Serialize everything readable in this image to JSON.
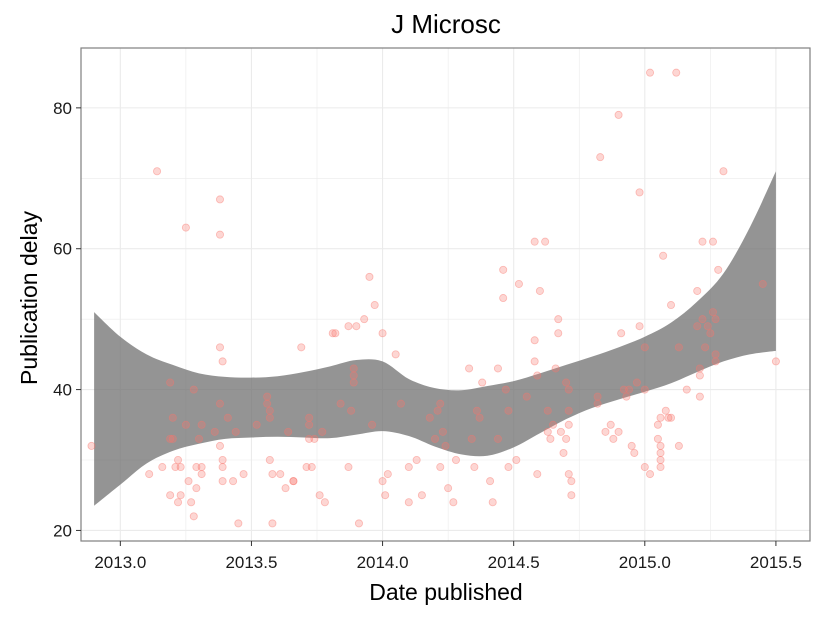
{
  "chart_data": {
    "type": "scatter",
    "title": "J Microsc",
    "xlabel": "Date published",
    "ylabel": "Publication delay",
    "xlim": [
      2012.85,
      2015.63
    ],
    "ylim": [
      18.5,
      88.5
    ],
    "x_ticks": [
      "2013.0",
      "2013.5",
      "2014.0",
      "2014.5",
      "2015.0",
      "2015.5"
    ],
    "y_ticks": [
      "20",
      "40",
      "60",
      "80"
    ],
    "grid": true,
    "legend": "none",
    "colors": {
      "points": "#f8766d",
      "ribbon": "#6b6b6b",
      "panel_border": "#7f7f7f",
      "grid": "#ebebeb"
    },
    "smooth_band": {
      "x": [
        2012.9,
        2013.0,
        2013.1,
        2013.2,
        2013.3,
        2013.4,
        2013.5,
        2013.6,
        2013.7,
        2013.8,
        2013.9,
        2014.0,
        2014.1,
        2014.2,
        2014.3,
        2014.4,
        2014.5,
        2014.6,
        2014.7,
        2014.8,
        2014.9,
        2015.0,
        2015.1,
        2015.2,
        2015.3,
        2015.4,
        2015.5
      ],
      "upper": [
        51.0,
        47.5,
        45.0,
        43.5,
        42.3,
        41.8,
        41.7,
        41.9,
        42.5,
        43.3,
        44.2,
        44.0,
        41.5,
        40.2,
        39.9,
        40.5,
        41.2,
        42.3,
        43.5,
        44.7,
        46.0,
        47.5,
        49.5,
        52.5,
        56.5,
        63.0,
        71.0
      ],
      "lower": [
        23.5,
        26.5,
        29.5,
        31.3,
        32.3,
        33.0,
        33.2,
        33.3,
        33.2,
        33.1,
        33.6,
        34.1,
        33.4,
        31.9,
        30.8,
        30.6,
        31.8,
        33.8,
        35.8,
        37.4,
        38.6,
        39.7,
        40.9,
        42.5,
        44.0,
        45.0,
        45.5
      ]
    },
    "points": [
      [
        2012.89,
        32
      ],
      [
        2013.11,
        28
      ],
      [
        2013.14,
        71
      ],
      [
        2013.16,
        29
      ],
      [
        2013.19,
        41
      ],
      [
        2013.19,
        25
      ],
      [
        2013.19,
        33
      ],
      [
        2013.2,
        36
      ],
      [
        2013.2,
        33
      ],
      [
        2013.21,
        29
      ],
      [
        2013.22,
        24
      ],
      [
        2013.22,
        30
      ],
      [
        2013.23,
        25
      ],
      [
        2013.23,
        29
      ],
      [
        2013.25,
        35
      ],
      [
        2013.25,
        63
      ],
      [
        2013.26,
        27
      ],
      [
        2013.27,
        24
      ],
      [
        2013.28,
        22
      ],
      [
        2013.28,
        40
      ],
      [
        2013.29,
        29
      ],
      [
        2013.29,
        26
      ],
      [
        2013.3,
        33
      ],
      [
        2013.31,
        35
      ],
      [
        2013.31,
        29
      ],
      [
        2013.31,
        28
      ],
      [
        2013.36,
        34
      ],
      [
        2013.38,
        67
      ],
      [
        2013.38,
        62
      ],
      [
        2013.38,
        46
      ],
      [
        2013.39,
        44
      ],
      [
        2013.38,
        38
      ],
      [
        2013.38,
        32
      ],
      [
        2013.39,
        30
      ],
      [
        2013.39,
        29
      ],
      [
        2013.39,
        27
      ],
      [
        2013.41,
        36
      ],
      [
        2013.43,
        27
      ],
      [
        2013.44,
        34
      ],
      [
        2013.45,
        21
      ],
      [
        2013.47,
        28
      ],
      [
        2013.52,
        35
      ],
      [
        2013.56,
        39
      ],
      [
        2013.56,
        38
      ],
      [
        2013.57,
        37
      ],
      [
        2013.57,
        36
      ],
      [
        2013.57,
        30
      ],
      [
        2013.58,
        28
      ],
      [
        2013.58,
        21
      ],
      [
        2013.61,
        28
      ],
      [
        2013.63,
        26
      ],
      [
        2013.64,
        34
      ],
      [
        2013.66,
        27
      ],
      [
        2013.66,
        27
      ],
      [
        2013.69,
        46
      ],
      [
        2013.71,
        29
      ],
      [
        2013.72,
        36
      ],
      [
        2013.72,
        35
      ],
      [
        2013.72,
        33
      ],
      [
        2013.73,
        29
      ],
      [
        2013.74,
        33
      ],
      [
        2013.76,
        25
      ],
      [
        2013.77,
        34
      ],
      [
        2013.78,
        24
      ],
      [
        2013.81,
        48
      ],
      [
        2013.82,
        48
      ],
      [
        2013.84,
        38
      ],
      [
        2013.87,
        49
      ],
      [
        2013.88,
        37
      ],
      [
        2013.89,
        43
      ],
      [
        2013.89,
        42
      ],
      [
        2013.89,
        41
      ],
      [
        2013.87,
        29
      ],
      [
        2013.9,
        49
      ],
      [
        2013.91,
        21
      ],
      [
        2013.93,
        50
      ],
      [
        2013.95,
        56
      ],
      [
        2013.96,
        35
      ],
      [
        2013.97,
        52
      ],
      [
        2014.0,
        48
      ],
      [
        2014.0,
        27
      ],
      [
        2014.01,
        25
      ],
      [
        2014.02,
        28
      ],
      [
        2014.05,
        45
      ],
      [
        2014.07,
        38
      ],
      [
        2014.1,
        29
      ],
      [
        2014.1,
        24
      ],
      [
        2014.13,
        30
      ],
      [
        2014.15,
        25
      ],
      [
        2014.18,
        36
      ],
      [
        2014.2,
        33
      ],
      [
        2014.21,
        37
      ],
      [
        2014.22,
        38
      ],
      [
        2014.22,
        29
      ],
      [
        2014.23,
        34
      ],
      [
        2014.24,
        32
      ],
      [
        2014.25,
        26
      ],
      [
        2014.27,
        24
      ],
      [
        2014.28,
        30
      ],
      [
        2014.33,
        43
      ],
      [
        2014.34,
        33
      ],
      [
        2014.35,
        29
      ],
      [
        2014.36,
        37
      ],
      [
        2014.37,
        36
      ],
      [
        2014.38,
        41
      ],
      [
        2014.41,
        27
      ],
      [
        2014.42,
        24
      ],
      [
        2014.44,
        43
      ],
      [
        2014.44,
        33
      ],
      [
        2014.46,
        57
      ],
      [
        2014.46,
        53
      ],
      [
        2014.47,
        40
      ],
      [
        2014.48,
        29
      ],
      [
        2014.48,
        37
      ],
      [
        2014.51,
        30
      ],
      [
        2014.52,
        55
      ],
      [
        2014.55,
        39
      ],
      [
        2014.58,
        61
      ],
      [
        2014.58,
        47
      ],
      [
        2014.58,
        44
      ],
      [
        2014.59,
        42
      ],
      [
        2014.59,
        28
      ],
      [
        2014.6,
        54
      ],
      [
        2014.62,
        61
      ],
      [
        2014.63,
        37
      ],
      [
        2014.63,
        34
      ],
      [
        2014.64,
        33
      ],
      [
        2014.65,
        35
      ],
      [
        2014.66,
        43
      ],
      [
        2014.67,
        50
      ],
      [
        2014.67,
        48
      ],
      [
        2014.68,
        34
      ],
      [
        2014.69,
        31
      ],
      [
        2014.7,
        41
      ],
      [
        2014.7,
        33
      ],
      [
        2014.71,
        40
      ],
      [
        2014.71,
        37
      ],
      [
        2014.71,
        35
      ],
      [
        2014.71,
        28
      ],
      [
        2014.72,
        27
      ],
      [
        2014.72,
        25
      ],
      [
        2014.82,
        39
      ],
      [
        2014.82,
        38
      ],
      [
        2014.83,
        73
      ],
      [
        2014.85,
        34
      ],
      [
        2014.87,
        35
      ],
      [
        2014.88,
        33
      ],
      [
        2014.9,
        79
      ],
      [
        2014.9,
        34
      ],
      [
        2014.91,
        48
      ],
      [
        2014.92,
        40
      ],
      [
        2014.93,
        39
      ],
      [
        2014.94,
        40
      ],
      [
        2014.95,
        32
      ],
      [
        2014.96,
        31
      ],
      [
        2014.97,
        41
      ],
      [
        2014.98,
        68
      ],
      [
        2014.98,
        49
      ],
      [
        2015.0,
        46
      ],
      [
        2015.0,
        40
      ],
      [
        2015.0,
        29
      ],
      [
        2015.02,
        85
      ],
      [
        2015.02,
        28
      ],
      [
        2015.05,
        35
      ],
      [
        2015.05,
        33
      ],
      [
        2015.06,
        36
      ],
      [
        2015.06,
        32
      ],
      [
        2015.06,
        31
      ],
      [
        2015.06,
        30
      ],
      [
        2015.06,
        29
      ],
      [
        2015.07,
        59
      ],
      [
        2015.08,
        37
      ],
      [
        2015.09,
        36
      ],
      [
        2015.1,
        52
      ],
      [
        2015.1,
        36
      ],
      [
        2015.12,
        85
      ],
      [
        2015.13,
        46
      ],
      [
        2015.13,
        32
      ],
      [
        2015.16,
        40
      ],
      [
        2015.2,
        54
      ],
      [
        2015.2,
        49
      ],
      [
        2015.21,
        43
      ],
      [
        2015.21,
        42
      ],
      [
        2015.21,
        39
      ],
      [
        2015.22,
        61
      ],
      [
        2015.22,
        50
      ],
      [
        2015.23,
        46
      ],
      [
        2015.24,
        49
      ],
      [
        2015.25,
        48
      ],
      [
        2015.26,
        61
      ],
      [
        2015.26,
        51
      ],
      [
        2015.27,
        50
      ],
      [
        2015.27,
        45
      ],
      [
        2015.27,
        44
      ],
      [
        2015.28,
        57
      ],
      [
        2015.3,
        71
      ],
      [
        2015.45,
        55
      ],
      [
        2015.5,
        44
      ]
    ]
  }
}
